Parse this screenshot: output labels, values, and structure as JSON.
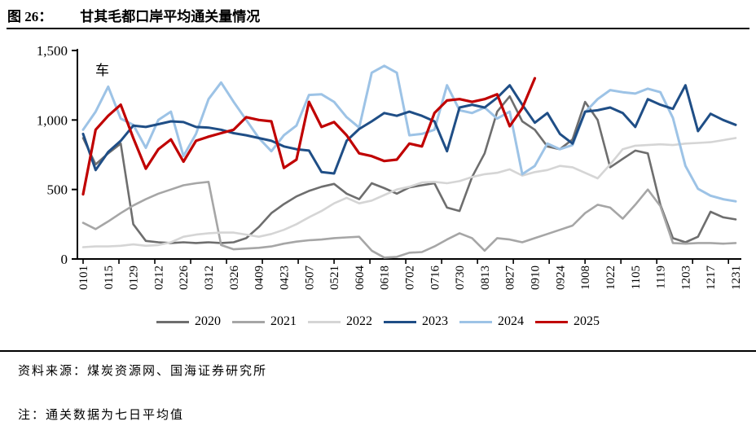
{
  "header": {
    "figure_label": "图 26：",
    "figure_title": "甘其毛都口岸平均通关量情况"
  },
  "footer": {
    "source": "资料来源：煤炭资源网、国海证券研究所",
    "note": "注：通关数据为七日平均值"
  },
  "chart_data": {
    "type": "line",
    "title": "甘其毛都口岸平均通关量情况",
    "unit_label": "车",
    "legend_position": "bottom",
    "grid": false,
    "y_axis": {
      "range": [
        0,
        1500
      ],
      "ticks": [
        0,
        500,
        1000,
        1500
      ],
      "tick_labels": [
        "0",
        "500",
        "1,000",
        "1,500"
      ]
    },
    "x_axis": {
      "labels": [
        "0101",
        "0115",
        "0129",
        "0212",
        "0226",
        "0312",
        "0326",
        "0409",
        "0423",
        "0507",
        "0521",
        "0604",
        "0618",
        "0702",
        "0716",
        "0730",
        "0813",
        "0827",
        "0910",
        "0924",
        "1008",
        "1022",
        "1105",
        "1119",
        "1203",
        "1217",
        "1231"
      ],
      "label_days": [
        1,
        15,
        29,
        43,
        57,
        71,
        85,
        99,
        113,
        127,
        141,
        155,
        169,
        183,
        197,
        211,
        225,
        239,
        253,
        267,
        281,
        295,
        309,
        323,
        337,
        351,
        365
      ],
      "day_range": [
        1,
        365
      ],
      "tick_interval_days": 20
    },
    "sample_days": [
      1,
      8,
      15,
      22,
      29,
      36,
      43,
      50,
      57,
      64,
      71,
      78,
      85,
      92,
      99,
      106,
      113,
      120,
      127,
      134,
      141,
      148,
      155,
      162,
      169,
      176,
      183,
      190,
      197,
      204,
      211,
      218,
      225,
      232,
      239,
      246,
      253,
      260,
      267,
      274,
      281,
      288,
      295,
      302,
      309,
      316,
      323,
      330,
      337,
      344,
      351,
      358,
      365
    ],
    "series": [
      {
        "name": "2020",
        "color": "#6e6e6e",
        "width": 2.6,
        "values": [
          870,
          680,
          760,
          830,
          250,
          130,
          120,
          115,
          120,
          115,
          120,
          115,
          120,
          150,
          230,
          330,
          395,
          450,
          490,
          520,
          540,
          470,
          430,
          545,
          510,
          470,
          515,
          530,
          545,
          370,
          345,
          590,
          760,
          1060,
          1170,
          990,
          930,
          810,
          790,
          860,
          1130,
          1000,
          660,
          720,
          780,
          760,
          390,
          150,
          120,
          160,
          340,
          300,
          285
        ]
      },
      {
        "name": "2021",
        "color": "#a6a6a6",
        "width": 2.6,
        "values": [
          260,
          215,
          270,
          330,
          385,
          430,
          470,
          500,
          530,
          545,
          555,
          100,
          70,
          75,
          80,
          90,
          110,
          125,
          135,
          140,
          150,
          155,
          160,
          60,
          10,
          15,
          45,
          50,
          90,
          140,
          185,
          150,
          60,
          150,
          140,
          120,
          150,
          180,
          210,
          240,
          330,
          390,
          370,
          290,
          390,
          500,
          380,
          115,
          110,
          115,
          115,
          110,
          115
        ]
      },
      {
        "name": "2022",
        "color": "#d5d5d5",
        "width": 2.6,
        "values": [
          85,
          90,
          90,
          95,
          105,
          95,
          100,
          120,
          160,
          175,
          185,
          190,
          190,
          175,
          160,
          180,
          210,
          250,
          300,
          345,
          400,
          440,
          400,
          420,
          460,
          500,
          520,
          550,
          555,
          545,
          560,
          590,
          610,
          620,
          645,
          600,
          625,
          640,
          670,
          660,
          620,
          580,
          680,
          790,
          815,
          820,
          825,
          820,
          830,
          835,
          840,
          855,
          870
        ]
      },
      {
        "name": "2023",
        "color": "#1f4e86",
        "width": 3,
        "values": [
          900,
          640,
          770,
          850,
          960,
          950,
          970,
          990,
          985,
          950,
          945,
          930,
          905,
          890,
          870,
          850,
          810,
          790,
          780,
          625,
          615,
          850,
          935,
          990,
          1050,
          1030,
          1060,
          1030,
          990,
          775,
          1090,
          1110,
          1090,
          1160,
          1250,
          1110,
          980,
          1050,
          900,
          830,
          1060,
          1070,
          1090,
          1050,
          950,
          1150,
          1110,
          1080,
          1250,
          920,
          1045,
          1000,
          965
        ]
      },
      {
        "name": "2024",
        "color": "#9dc3e6",
        "width": 3,
        "values": [
          930,
          1060,
          1240,
          1010,
          965,
          800,
          1000,
          1060,
          740,
          900,
          1150,
          1270,
          1130,
          1000,
          870,
          775,
          890,
          960,
          1180,
          1185,
          1130,
          1020,
          945,
          1340,
          1390,
          1340,
          890,
          900,
          930,
          1250,
          1070,
          1050,
          1090,
          1010,
          1060,
          610,
          670,
          830,
          790,
          820,
          1055,
          1150,
          1215,
          1200,
          1190,
          1225,
          1200,
          1015,
          670,
          505,
          455,
          430,
          415
        ]
      },
      {
        "name": "2025",
        "color": "#c00000",
        "width": 3.2,
        "values": [
          465,
          930,
          1030,
          1110,
          870,
          650,
          790,
          860,
          700,
          850,
          880,
          905,
          930,
          1020,
          1000,
          990,
          655,
          715,
          1130,
          950,
          985,
          890,
          760,
          740,
          705,
          715,
          830,
          810,
          1050,
          1140,
          1150,
          1130,
          1150,
          1185,
          955,
          1085,
          1300,
          null,
          null,
          null,
          null,
          null,
          null,
          null,
          null,
          null,
          null,
          null,
          null,
          null,
          null,
          null,
          null
        ]
      }
    ]
  }
}
